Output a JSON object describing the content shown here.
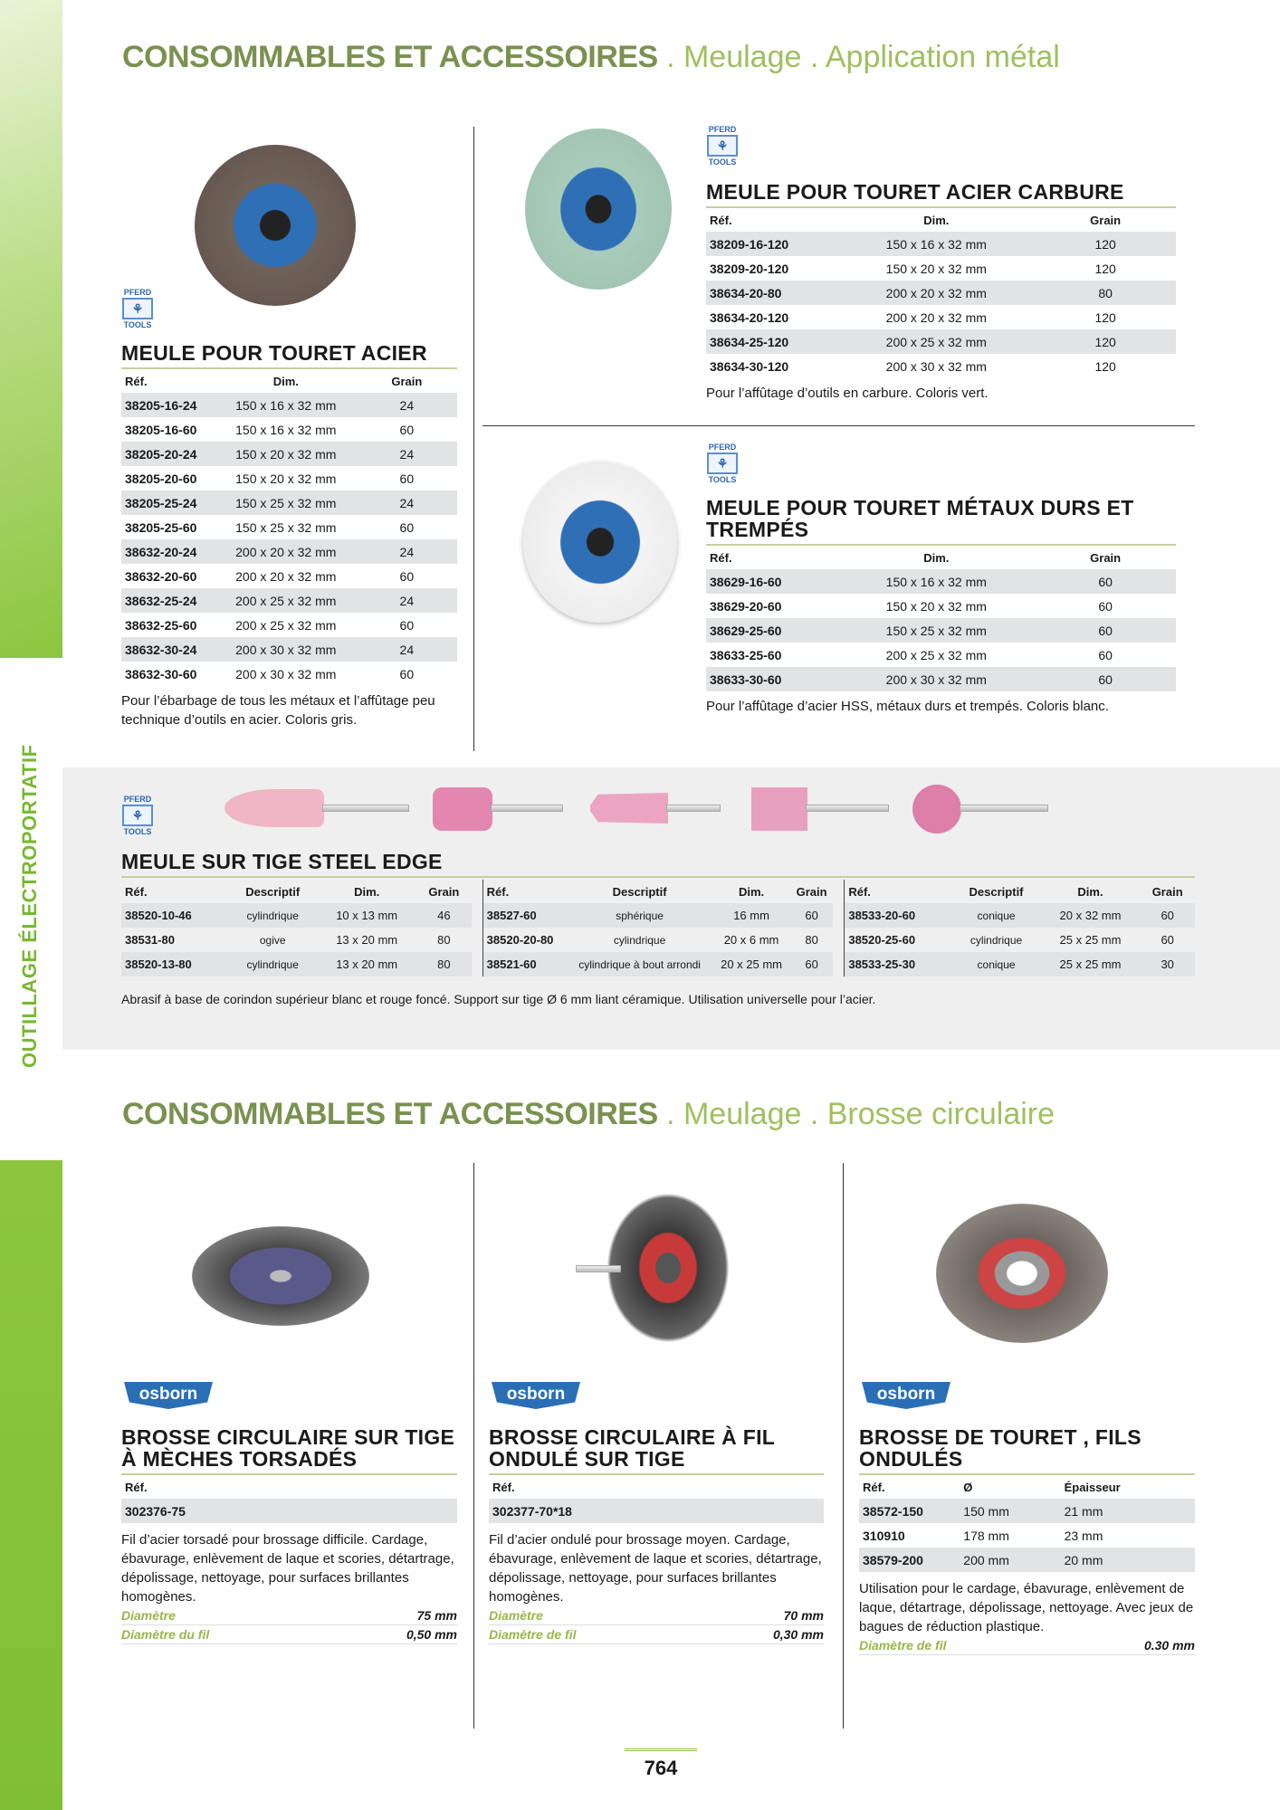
{
  "sidebar": {
    "label": "OUTILLAGE ÉLECTROPORTATIF"
  },
  "section1": {
    "title_main": "CONSOMMABLES ET ACCESSOIRES",
    "title_sub": " . Meulage . Application métal"
  },
  "section2": {
    "title_main": "CONSOMMABLES ET ACCESSOIRES",
    "title_sub": " . Meulage . Brosse circulaire"
  },
  "brand_pferd": {
    "top": "PFERD",
    "bottom": "TOOLS"
  },
  "brand_osborn": "osborn",
  "colors": {
    "accent_green": "#8cc63f",
    "title_green": "#7a9150",
    "row_gray": "#e1e3e5",
    "brand_blue": "#2a6fb5"
  },
  "products": [
    {
      "title": "MEULE POUR TOURET ACIER",
      "headers": [
        "Réf.",
        "Dim.",
        "Grain"
      ],
      "rows": [
        [
          "38205-16-24",
          "150 x 16 x 32 mm",
          "24"
        ],
        [
          "38205-16-60",
          "150 x 16 x 32 mm",
          "60"
        ],
        [
          "38205-20-24",
          "150 x 20 x 32 mm",
          "24"
        ],
        [
          "38205-20-60",
          "150 x 20 x 32 mm",
          "60"
        ],
        [
          "38205-25-24",
          "150 x 25 x 32 mm",
          "24"
        ],
        [
          "38205-25-60",
          "150 x 25 x 32 mm",
          "60"
        ],
        [
          "38632-20-24",
          "200 x 20 x 32 mm",
          "24"
        ],
        [
          "38632-20-60",
          "200 x 20 x 32 mm",
          "60"
        ],
        [
          "38632-25-24",
          "200 x 25 x 32 mm",
          "24"
        ],
        [
          "38632-25-60",
          "200 x 25 x 32 mm",
          "60"
        ],
        [
          "38632-30-24",
          "200 x 30 x 32 mm",
          "24"
        ],
        [
          "38632-30-60",
          "200 x 30 x 32 mm",
          "60"
        ]
      ],
      "description": "Pour l’ébarbage de tous les métaux et l’affûtage peu technique d’outils en acier. Coloris gris."
    },
    {
      "title": "MEULE POUR TOURET ACIER CARBURE",
      "headers": [
        "Réf.",
        "Dim.",
        "Grain"
      ],
      "rows": [
        [
          "38209-16-120",
          "150 x 16 x 32 mm",
          "120"
        ],
        [
          "38209-20-120",
          "150 x 20 x 32 mm",
          "120"
        ],
        [
          "38634-20-80",
          "200 x 20 x 32 mm",
          "80"
        ],
        [
          "38634-20-120",
          "200 x 20 x 32 mm",
          "120"
        ],
        [
          "38634-25-120",
          "200 x 25 x 32 mm",
          "120"
        ],
        [
          "38634-30-120",
          "200 x 30 x 32 mm",
          "120"
        ]
      ],
      "description": "Pour l’affûtage d’outils en carbure. Coloris vert."
    },
    {
      "title": "MEULE POUR TOURET MÉTAUX DURS ET TREMPÉS",
      "headers": [
        "Réf.",
        "Dim.",
        "Grain"
      ],
      "rows": [
        [
          "38629-16-60",
          "150 x 16 x 32 mm",
          "60"
        ],
        [
          "38629-20-60",
          "150 x 20 x 32 mm",
          "60"
        ],
        [
          "38629-25-60",
          "150 x 25 x 32 mm",
          "60"
        ],
        [
          "38633-25-60",
          "200 x 25 x 32 mm",
          "60"
        ],
        [
          "38633-30-60",
          "200 x 30 x 32 mm",
          "60"
        ]
      ],
      "description": "Pour l’affûtage d’acier HSS, métaux durs et trempés. Coloris blanc."
    }
  ],
  "mounted": {
    "title": "MEULE SUR TIGE STEEL EDGE",
    "headers": [
      "Réf.",
      "Descriptif",
      "Dim.",
      "Grain"
    ],
    "tables": [
      [
        [
          "38520-10-46",
          "cylindrique",
          "10 x 13 mm",
          "46"
        ],
        [
          "38531-80",
          "ogive",
          "13 x 20 mm",
          "80"
        ],
        [
          "38520-13-80",
          "cylindrique",
          "13 x 20 mm",
          "80"
        ]
      ],
      [
        [
          "38527-60",
          "sphérique",
          "16 mm",
          "60"
        ],
        [
          "38520-20-80",
          "cylindrique",
          "20 x 6 mm",
          "80"
        ],
        [
          "38521-60",
          "cylindrique à bout arrondi",
          "20 x 25 mm",
          "60"
        ]
      ],
      [
        [
          "38533-20-60",
          "conique",
          "20 x 32 mm",
          "60"
        ],
        [
          "38520-25-60",
          "cylindrique",
          "25 x 25 mm",
          "60"
        ],
        [
          "38533-25-30",
          "conique",
          "25 x 25 mm",
          "30"
        ]
      ]
    ],
    "description": "Abrasif à base de corindon supérieur blanc et rouge foncé. Support sur tige Ø 6 mm liant céramique. Utilisation universelle pour l’acier."
  },
  "brushes": [
    {
      "title": "BROSSE CIRCULAIRE SUR TIGE À MÈCHES TORSADÉS",
      "headers": [
        "Réf."
      ],
      "rows": [
        [
          "302376-75"
        ]
      ],
      "description": "Fil d’acier torsadé pour brossage difficile. Cardage, ébavurage, enlèvement de laque et scories, détartrage, dépolissage, nettoyage, pour surfaces brillantes homogènes.",
      "specs": [
        {
          "label": "Diamètre",
          "value": "75 mm"
        },
        {
          "label": "Diamètre du fil",
          "value": "0,50 mm"
        }
      ]
    },
    {
      "title": "BROSSE CIRCULAIRE À FIL ONDULÉ SUR TIGE",
      "headers": [
        "Réf."
      ],
      "rows": [
        [
          "302377-70*18"
        ]
      ],
      "description": "Fil d’acier ondulé pour brossage moyen. Cardage, ébavurage, enlèvement de laque et scories, détartrage, dépolissage, nettoyage, pour surfaces brillantes homogènes.",
      "specs": [
        {
          "label": "Diamètre",
          "value": "70 mm"
        },
        {
          "label": "Diamètre de fil",
          "value": "0,30 mm"
        }
      ]
    },
    {
      "title": "BROSSE DE TOURET , FILS ONDULÉS",
      "headers": [
        "Réf.",
        "Ø",
        "Épaisseur"
      ],
      "rows": [
        [
          "38572-150",
          "150 mm",
          "21 mm"
        ],
        [
          "310910",
          "178 mm",
          "23 mm"
        ],
        [
          "38579-200",
          "200 mm",
          "20 mm"
        ]
      ],
      "description": "Utilisation pour le cardage, ébavurage, enlèvement de laque, détartrage, dépolissage, nettoyage. Avec jeux de bagues de réduction plastique.",
      "specs": [
        {
          "label": "Diamètre de fil",
          "value": "0.30 mm"
        }
      ]
    }
  ],
  "page_number": "764"
}
